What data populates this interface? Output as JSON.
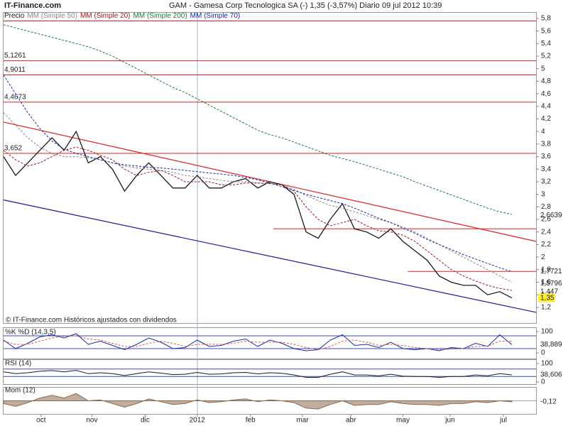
{
  "chart_data": [
    {
      "type": "line",
      "site": "IT-Finance.com",
      "title": "GAM - Gamesa Corp Tecnologica SA (-)   1,35 (-3,57%)   Diario  09 jul 2012 10:39",
      "note": "© IT-Finance.com  Históricos ajustados con dividendos",
      "xlim": [
        0,
        44
      ],
      "xticks": [
        {
          "value": 3.1,
          "label": "oct"
        },
        {
          "value": 7.3,
          "label": "nov"
        },
        {
          "value": 11.7,
          "label": "dic"
        },
        {
          "value": 16.0,
          "label": "2012"
        },
        {
          "value": 20.4,
          "label": "feb"
        },
        {
          "value": 24.7,
          "label": "mar"
        },
        {
          "value": 28.7,
          "label": "abr"
        },
        {
          "value": 33.0,
          "label": "may"
        },
        {
          "value": 36.9,
          "label": "jun"
        },
        {
          "value": 41.3,
          "label": "jul"
        }
      ],
      "ylim": [
        0.95,
        5.89
      ],
      "yticks": [
        {
          "value": 1.2,
          "label": "1,2"
        },
        {
          "value": 1.4,
          "label": "1,4"
        },
        {
          "value": 1.6,
          "label": "1,6"
        },
        {
          "value": 1.8,
          "label": "1,8"
        },
        2,
        {
          "value": 2.2,
          "label": "2,2"
        },
        {
          "value": 2.4,
          "label": "2,4"
        },
        {
          "value": 2.6,
          "label": "2,6"
        },
        {
          "value": 2.8,
          "label": "2,8"
        },
        3,
        {
          "value": 3.2,
          "label": "3,2"
        },
        {
          "value": 3.4,
          "label": "3,4"
        },
        {
          "value": 3.6,
          "label": "3,6"
        },
        {
          "value": 3.8,
          "label": "3,8"
        },
        4,
        {
          "value": 4.2,
          "label": "4,2"
        },
        {
          "value": 4.4,
          "label": "4,4"
        },
        {
          "value": 4.6,
          "label": "4,6"
        },
        {
          "value": 4.8,
          "label": "4,8"
        },
        5,
        {
          "value": 5.2,
          "label": "5,2"
        },
        {
          "value": 5.4,
          "label": "5,4"
        },
        {
          "value": 5.6,
          "label": "5,6"
        },
        {
          "value": 5.8,
          "label": "5,8"
        }
      ],
      "series": [
        {
          "name": "Precio",
          "color": "#1a1a1a",
          "style": "solid",
          "values": [
            3.6,
            3.3,
            3.5,
            3.7,
            3.9,
            3.7,
            4.0,
            3.5,
            3.6,
            3.4,
            3.05,
            3.3,
            3.5,
            3.3,
            3.1,
            3.1,
            3.3,
            3.1,
            3.1,
            3.2,
            3.25,
            3.1,
            3.2,
            3.15,
            3.0,
            2.4,
            2.3,
            2.6,
            2.85,
            2.45,
            2.4,
            2.3,
            2.45,
            2.25,
            2.1,
            1.95,
            1.7,
            1.6,
            1.55,
            1.55,
            1.4,
            1.45,
            1.35
          ]
        },
        {
          "name": "MM (Simple 50)",
          "color": "#8a8a8a",
          "style": "dashed",
          "values": [
            4.3,
            4.1,
            3.9,
            3.75,
            3.65,
            3.6,
            3.6,
            3.58,
            3.55,
            3.5,
            3.45,
            3.42,
            3.4,
            3.38,
            3.35,
            3.3,
            3.28,
            3.25,
            3.22,
            3.2,
            3.2,
            3.18,
            3.17,
            3.15,
            3.08,
            2.98,
            2.9,
            2.82,
            2.78,
            2.72,
            2.66,
            2.6,
            2.55,
            2.48,
            2.4,
            2.3,
            2.2,
            2.1,
            2.0,
            1.9,
            1.8,
            1.7,
            1.6
          ]
        },
        {
          "name": "MM (Simple 20)",
          "color": "#a01818",
          "style": "dashed",
          "values": [
            3.7,
            3.55,
            3.45,
            3.5,
            3.6,
            3.7,
            3.75,
            3.7,
            3.62,
            3.55,
            3.4,
            3.3,
            3.35,
            3.38,
            3.3,
            3.2,
            3.2,
            3.2,
            3.15,
            3.15,
            3.18,
            3.18,
            3.17,
            3.15,
            3.05,
            2.8,
            2.6,
            2.5,
            2.55,
            2.6,
            2.5,
            2.42,
            2.4,
            2.35,
            2.25,
            2.1,
            1.95,
            1.8,
            1.7,
            1.62,
            1.55,
            1.5,
            1.47
          ]
        },
        {
          "name": "MM (Simple 200)",
          "color": "#1e7a30",
          "style": "dashed",
          "values": [
            5.7,
            5.65,
            5.6,
            5.55,
            5.5,
            5.45,
            5.4,
            5.35,
            5.28,
            5.2,
            5.1,
            5.0,
            4.9,
            4.8,
            4.7,
            4.62,
            4.52,
            4.42,
            4.32,
            4.22,
            4.12,
            4.02,
            3.95,
            3.9,
            3.83,
            3.76,
            3.69,
            3.62,
            3.57,
            3.52,
            3.46,
            3.4,
            3.34,
            3.28,
            3.2,
            3.13,
            3.06,
            2.99,
            2.92,
            2.85,
            2.78,
            2.72,
            2.68
          ]
        },
        {
          "name": "MM (Simple 70)",
          "color": "#1a2aa8",
          "style": "dashed",
          "values": [
            4.9,
            4.6,
            4.3,
            4.05,
            3.85,
            3.72,
            3.65,
            3.6,
            3.55,
            3.5,
            3.47,
            3.45,
            3.43,
            3.42,
            3.4,
            3.38,
            3.36,
            3.34,
            3.32,
            3.3,
            3.27,
            3.23,
            3.18,
            3.12,
            3.06,
            3.0,
            2.95,
            2.9,
            2.85,
            2.78,
            2.7,
            2.62,
            2.55,
            2.46,
            2.38,
            2.28,
            2.2,
            2.12,
            2.04,
            1.97,
            1.9,
            1.83,
            1.77
          ]
        }
      ],
      "levels": [
        {
          "value": 5.1261,
          "label": "5,1261"
        },
        {
          "value": 4.9011,
          "label": "4,9011"
        },
        {
          "value": 4.4673,
          "label": "4,4673"
        },
        {
          "value": 3.652,
          "label": "3,652"
        }
      ],
      "hlines": [
        {
          "value": 5.76,
          "from": 0
        },
        {
          "value": 2.45,
          "from": 22.3
        },
        {
          "value": 1.7721,
          "from": 33.4
        }
      ],
      "level_color": "#e02020",
      "trendlines": [
        {
          "color": "#e02020",
          "y": [
            4.15,
            2.25
          ]
        },
        {
          "color": "#1a1aa0",
          "y": [
            2.91,
            1.12
          ]
        }
      ],
      "right_labels": [
        {
          "value": 2.6639,
          "label": "2,6639"
        },
        {
          "value": 1.7721,
          "label": "1,7721"
        },
        {
          "value": 1.5796,
          "label": "1,5796"
        },
        {
          "value": 1.447,
          "label": "1,447"
        },
        {
          "value": 1.35,
          "label": "1,35",
          "highlight": "#ffee33"
        }
      ]
    },
    {
      "type": "line",
      "title": "%K %D (14,3,5)",
      "ylim": [
        0,
        100
      ],
      "yticks": [
        100,
        0
      ],
      "bands": [
        80,
        20
      ],
      "series": [
        {
          "name": "%K",
          "color": "#1a2aa8",
          "style": "solid",
          "values": [
            60,
            20,
            45,
            75,
            85,
            70,
            90,
            40,
            55,
            35,
            15,
            40,
            70,
            50,
            20,
            25,
            60,
            30,
            35,
            55,
            65,
            30,
            60,
            45,
            20,
            10,
            15,
            60,
            85,
            35,
            40,
            25,
            50,
            20,
            15,
            20,
            10,
            25,
            20,
            45,
            30,
            85,
            39
          ]
        },
        {
          "name": "%D",
          "color": "#d06060",
          "style": "dashed",
          "values": [
            55,
            40,
            40,
            55,
            70,
            78,
            80,
            65,
            60,
            45,
            30,
            30,
            45,
            55,
            45,
            30,
            40,
            40,
            40,
            45,
            55,
            50,
            50,
            50,
            40,
            25,
            15,
            30,
            55,
            60,
            50,
            35,
            40,
            35,
            25,
            20,
            15,
            18,
            20,
            30,
            32,
            55,
            55
          ]
        }
      ],
      "right_labels": [
        {
          "value": 38.889,
          "label": "38,889"
        }
      ]
    },
    {
      "type": "line",
      "title": "RSI (14)",
      "ylim": [
        0,
        100
      ],
      "yticks": [
        100,
        0
      ],
      "bands": [
        70,
        30
      ],
      "series": [
        {
          "name": "RSI",
          "color": "#1a1a1a",
          "style": "solid",
          "values": [
            55,
            45,
            50,
            58,
            62,
            55,
            63,
            45,
            50,
            45,
            35,
            45,
            55,
            48,
            40,
            42,
            52,
            42,
            44,
            50,
            52,
            44,
            50,
            47,
            38,
            25,
            25,
            42,
            55,
            38,
            38,
            33,
            42,
            32,
            30,
            30,
            25,
            30,
            30,
            38,
            34,
            45,
            38.6
          ]
        }
      ],
      "right_labels": [
        {
          "value": 38.606,
          "label": "38,606"
        }
      ]
    },
    {
      "type": "area",
      "title": "Mom (12)",
      "ylim": [
        -1.2,
        1.2
      ],
      "yticks": [],
      "bands": [
        0
      ],
      "series": [
        {
          "name": "Mom",
          "color": "#8a6a50",
          "style": "solid",
          "values": [
            -0.3,
            -0.6,
            -0.2,
            0.3,
            0.6,
            0.3,
            0.8,
            0.0,
            0.1,
            -0.3,
            -0.7,
            -0.3,
            0.2,
            -0.1,
            -0.4,
            -0.3,
            0.1,
            -0.2,
            -0.1,
            0.1,
            0.2,
            -0.1,
            0.1,
            0.0,
            -0.2,
            -0.8,
            -0.9,
            -0.4,
            0.0,
            -0.5,
            -0.4,
            -0.4,
            -0.1,
            -0.3,
            -0.4,
            -0.4,
            -0.5,
            -0.3,
            -0.3,
            -0.1,
            -0.2,
            0.0,
            -0.12
          ]
        }
      ],
      "right_labels": [
        {
          "value": -0.12,
          "label": "-0,12"
        }
      ]
    }
  ]
}
